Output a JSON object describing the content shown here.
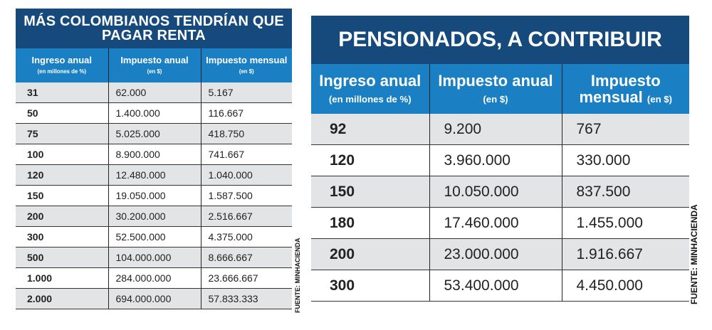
{
  "table1": {
    "title": "MÁS COLOMBIANOS TENDRÍAN QUE PAGAR RENTA",
    "headers": [
      {
        "main": "Ingreso anual",
        "sub": "(en millones de %)"
      },
      {
        "main": "Impuesto anual",
        "sub": "(en $)"
      },
      {
        "main": "Impuesto mensual",
        "sub": "(en $)"
      }
    ],
    "rows": [
      [
        "31",
        "62.000",
        "5.167"
      ],
      [
        "50",
        "1.400.000",
        "116.667"
      ],
      [
        "75",
        "5.025.000",
        "418.750"
      ],
      [
        "100",
        "8.900.000",
        "741.667"
      ],
      [
        "120",
        "12.480.000",
        "1.040.000"
      ],
      [
        "150",
        "19.050.000",
        "1.587.500"
      ],
      [
        "200",
        "30.200.000",
        "2.516.667"
      ],
      [
        "300",
        "52.500.000",
        "4.375.000"
      ],
      [
        "500",
        "104.000.000",
        "8.666.667"
      ],
      [
        "1.000",
        "284.000.000",
        "23.666.667"
      ],
      [
        "2.000",
        "694.000.000",
        "57.833.333"
      ]
    ],
    "source": "FUENTE: MINHACIENDA"
  },
  "table2": {
    "title": "PENSIONADOS, A CONTRIBUIR",
    "headers": [
      {
        "main": "Ingreso anual",
        "sub": "(en millones de %)"
      },
      {
        "main": "Impuesto anual",
        "sub": "(en $)"
      },
      {
        "main": "Impuesto mensual",
        "sub": "(en $)"
      }
    ],
    "rows": [
      [
        "92",
        "9.200",
        "767"
      ],
      [
        "120",
        "3.960.000",
        "330.000"
      ],
      [
        "150",
        "10.050.000",
        "837.500"
      ],
      [
        "180",
        "17.460.000",
        "1.455.000"
      ],
      [
        "200",
        "23.000.000",
        "1.916.667"
      ],
      [
        "300",
        "53.400.000",
        "4.450.000"
      ]
    ],
    "source": "FUENTE: MINHACIENDA"
  },
  "colors": {
    "title_bg": "#174a7c",
    "header_bg": "#1b80c3",
    "row_alt": "#e2e4e5"
  }
}
